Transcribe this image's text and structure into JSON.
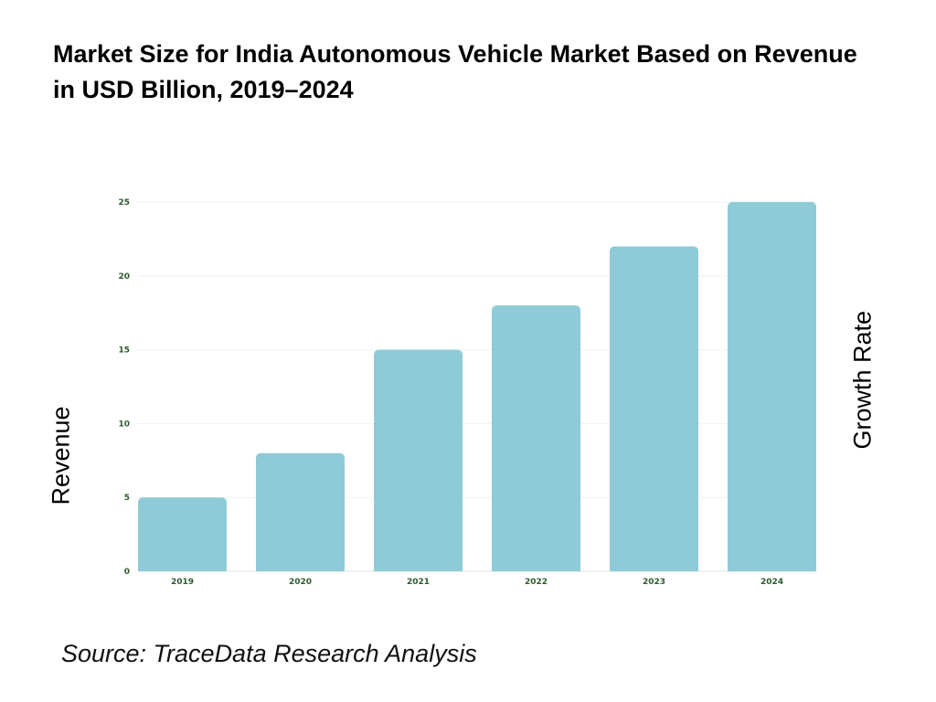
{
  "title": "Market Size for India Autonomous Vehicle Market Based on Revenue in USD Billion, 2019–2024",
  "source": "Source: TraceData Research Analysis",
  "chart_data": {
    "type": "bar",
    "title": "Market Size for India Autonomous Vehicle Market Based on Revenue in USD Billion, 2019–2024",
    "categories": [
      "2019",
      "2020",
      "2021",
      "2022",
      "2023",
      "2024"
    ],
    "values": [
      5,
      8,
      15,
      18,
      22,
      25
    ],
    "xlabel": "",
    "ylabel": "Revenue",
    "y2label": "Growth Rate",
    "ylim": [
      0,
      25
    ],
    "yticks": [
      "0",
      "5",
      "10",
      "15",
      "20",
      "25"
    ],
    "grid": true,
    "bar_color": "#8ecbd7",
    "tick_color": "#2e5a2e"
  }
}
